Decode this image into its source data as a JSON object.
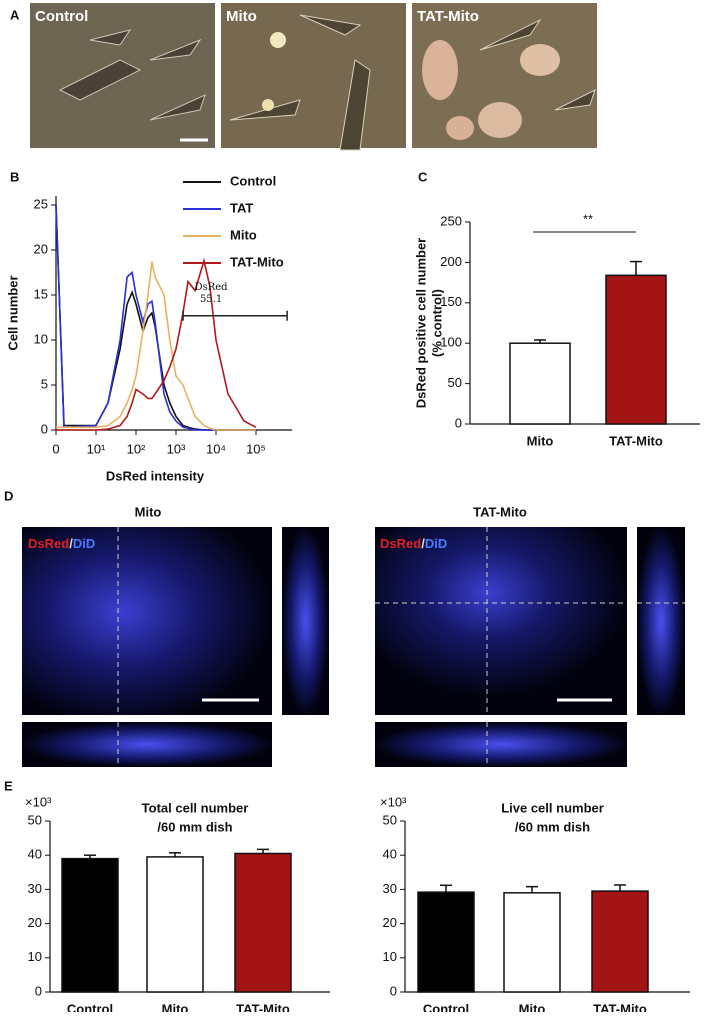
{
  "panels": {
    "letters": [
      "A",
      "B",
      "C",
      "D",
      "E"
    ],
    "panel_a": {
      "labels": [
        "Control",
        "Mito",
        "TAT-Mito"
      ]
    },
    "panel_d": {
      "titles": [
        "Mito",
        "TAT-Mito"
      ],
      "stain_red": "DsRed",
      "stain_sep": "/",
      "stain_blue": "DiD"
    }
  },
  "chart_data": [
    {
      "type": "line",
      "xlabel": "DsRed intensity",
      "ylabel": "Cell number",
      "xscale": "symlog",
      "x": [
        0,
        2,
        10,
        20,
        40,
        60,
        80,
        100,
        150,
        200,
        250,
        300,
        500,
        700,
        1000,
        1500,
        2000,
        3000,
        5000,
        7000,
        10000,
        20000,
        50000,
        100000
      ],
      "series": [
        {
          "name": "Control",
          "color": "#111111",
          "values": [
            25,
            0.5,
            0.5,
            3,
            9,
            14,
            15.3,
            14,
            11,
            12.5,
            13,
            11.5,
            5,
            3,
            1.5,
            0.5,
            0.3,
            0.1,
            0,
            0,
            0,
            0,
            0,
            0
          ]
        },
        {
          "name": "TAT",
          "color": "#2b2fd6",
          "values": [
            25,
            0.3,
            0.5,
            3,
            10,
            17,
            17.5,
            15,
            12,
            14,
            14.3,
            12,
            4,
            2,
            1,
            0.3,
            0.2,
            0,
            0,
            0,
            0,
            0,
            0,
            0
          ]
        },
        {
          "name": "Mito",
          "color": "#e9b25e",
          "values": [
            0.3,
            0.3,
            0.3,
            0.5,
            1.5,
            3,
            4.5,
            6,
            11,
            15,
            18.7,
            17,
            15,
            10,
            6,
            5,
            3.5,
            1.5,
            0.5,
            0.2,
            0,
            0,
            0,
            0
          ]
        },
        {
          "name": "TAT-Mito",
          "color": "#b3191c",
          "values": [
            0,
            0,
            0,
            0.1,
            0.5,
            1.5,
            3,
            4.5,
            4,
            3.5,
            3.5,
            4,
            5.5,
            7,
            9,
            13,
            16.5,
            15.5,
            18.8,
            16,
            10,
            4,
            1,
            0.3
          ]
        }
      ],
      "xlim": [
        0,
        800000
      ],
      "xticks": [
        0,
        {
          "value": 10,
          "label": "10¹"
        },
        {
          "value": 100,
          "label": "10²"
        },
        {
          "value": 1000,
          "label": "10³"
        },
        {
          "value": 10000,
          "label": "10⁴"
        },
        {
          "value": 100000,
          "label": "10⁵"
        }
      ],
      "ylim": [
        0,
        26
      ],
      "yticks": [
        0,
        5,
        10,
        15,
        20,
        25
      ],
      "legend": "top-right",
      "gate": {
        "label": "DsRed",
        "value": 55.1,
        "x": [
          1500,
          600000
        ],
        "y": 12.7
      }
    },
    {
      "type": "bar",
      "ylabel": [
        "DsRed positive cell number",
        "(% control)"
      ],
      "categories": [
        "Mito",
        "TAT-Mito"
      ],
      "values": [
        100,
        184
      ],
      "errors": [
        4,
        17
      ],
      "colors": [
        "#ffffff",
        "#a31515"
      ],
      "ylim": [
        0,
        250
      ],
      "yticks": [
        0,
        50,
        100,
        150,
        200,
        250
      ],
      "significance": "**"
    },
    {
      "type": "bar",
      "title": [
        "Total cell number",
        "/60 mm dish"
      ],
      "yunit": "×10³",
      "categories": [
        "Control",
        "Mito",
        "TAT-Mito"
      ],
      "values": [
        39,
        39.5,
        40.5
      ],
      "errors": [
        1,
        1.2,
        1.2
      ],
      "colors": [
        "#000000",
        "#ffffff",
        "#a31515"
      ],
      "ylim": [
        0,
        50
      ],
      "yticks": [
        0,
        10,
        20,
        30,
        40,
        50
      ]
    },
    {
      "type": "bar",
      "title": [
        "Live cell number",
        "/60 mm dish"
      ],
      "yunit": "×10³",
      "categories": [
        "Control",
        "Mito",
        "TAT-Mito"
      ],
      "values": [
        29.2,
        29,
        29.5
      ],
      "errors": [
        2,
        1.8,
        1.8
      ],
      "colors": [
        "#000000",
        "#ffffff",
        "#a31515"
      ],
      "ylim": [
        0,
        50
      ],
      "yticks": [
        0,
        10,
        20,
        30,
        40,
        50
      ]
    }
  ]
}
